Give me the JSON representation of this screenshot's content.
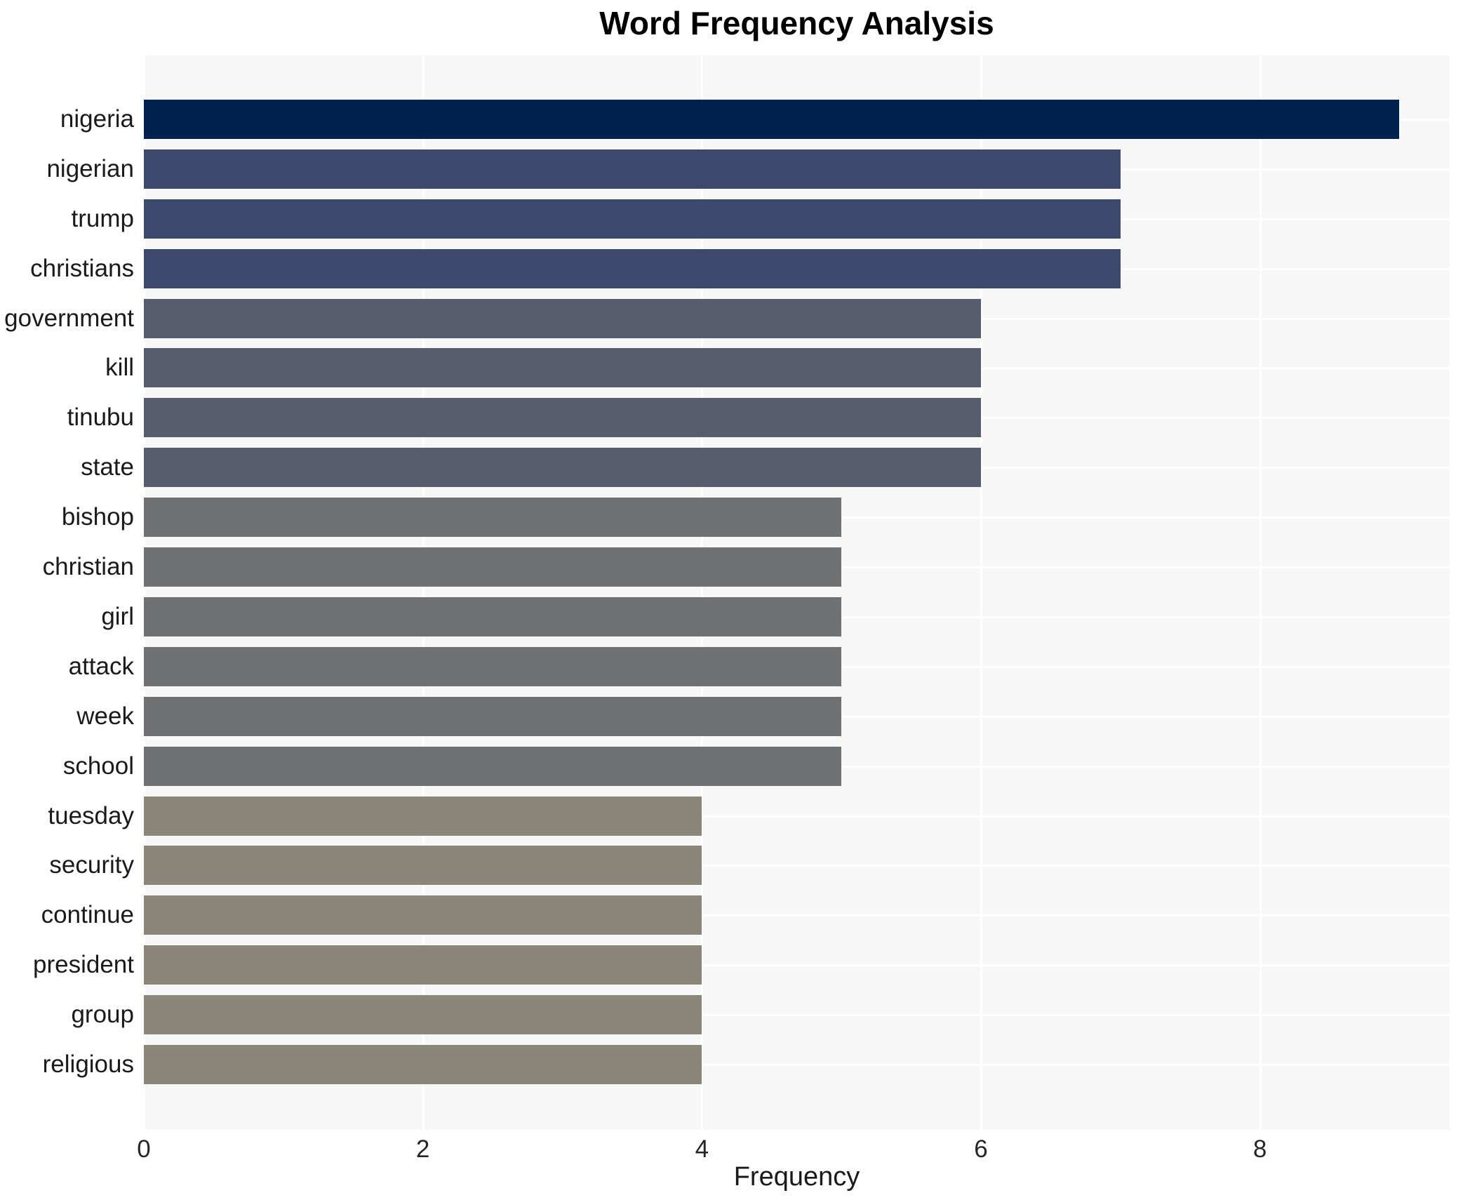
{
  "chart_data": {
    "type": "bar",
    "orientation": "horizontal",
    "title": "Word Frequency Analysis",
    "xlabel": "Frequency",
    "ylabel": "",
    "categories": [
      "nigeria",
      "nigerian",
      "trump",
      "christians",
      "government",
      "kill",
      "tinubu",
      "state",
      "bishop",
      "christian",
      "girl",
      "attack",
      "week",
      "school",
      "tuesday",
      "security",
      "continue",
      "president",
      "group",
      "religious"
    ],
    "values": [
      9,
      7,
      7,
      7,
      6,
      6,
      6,
      6,
      5,
      5,
      5,
      5,
      5,
      5,
      4,
      4,
      4,
      4,
      4,
      4
    ],
    "bar_colors": [
      "#00224e",
      "#3b496c",
      "#3b496c",
      "#3b496c",
      "#575d6d",
      "#575d6d",
      "#575d6d",
      "#575d6d",
      "#707173",
      "#707173",
      "#707173",
      "#707173",
      "#707173",
      "#707173",
      "#8a8779",
      "#8a8779",
      "#8a8779",
      "#8a8779",
      "#8a8779",
      "#8a8779"
    ],
    "x_ticks": [
      0,
      2,
      4,
      6,
      8
    ],
    "xlim": [
      0,
      9.36
    ],
    "grid": true,
    "legend": "none",
    "plot_bg_color": "#f7f7f7",
    "grid_color": "#ffffff",
    "title_color": "#000000",
    "label_color": "#1a1a1a"
  }
}
